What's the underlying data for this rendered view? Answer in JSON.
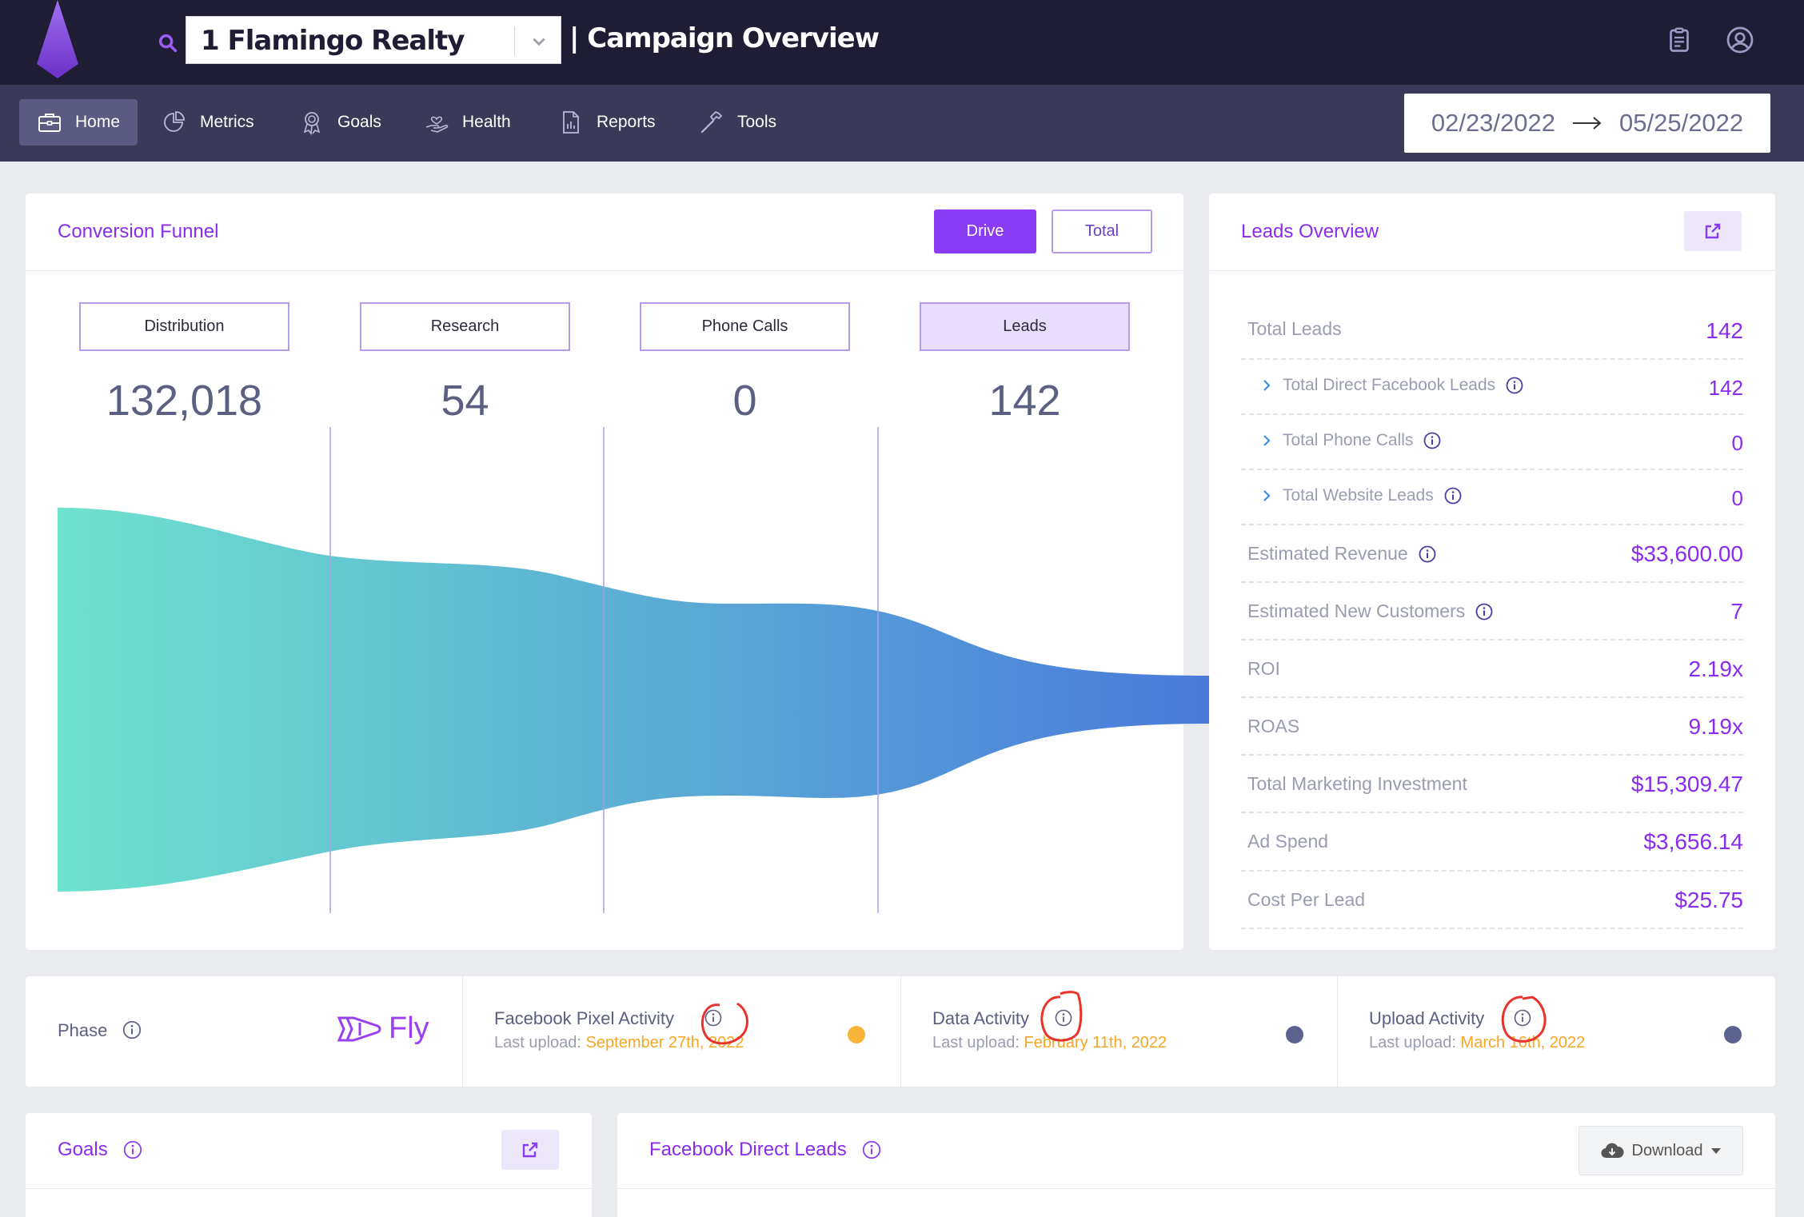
{
  "topbar": {
    "client": "1 Flamingo Realty",
    "page_title": "| Campaign Overview"
  },
  "nav": {
    "items": [
      {
        "label": "Home",
        "icon": "briefcase-icon"
      },
      {
        "label": "Metrics",
        "icon": "pie-chart-icon"
      },
      {
        "label": "Goals",
        "icon": "award-icon"
      },
      {
        "label": "Health",
        "icon": "hand-heart-icon"
      },
      {
        "label": "Reports",
        "icon": "report-icon"
      },
      {
        "label": "Tools",
        "icon": "hammer-icon"
      }
    ],
    "active": "Home"
  },
  "date_range": {
    "start": "02/23/2022",
    "end": "05/25/2022"
  },
  "funnel_card": {
    "title": "Conversion Funnel",
    "btn_drive": "Drive",
    "btn_total": "Total",
    "stages": [
      {
        "label": "Distribution",
        "value": "132,018"
      },
      {
        "label": "Research",
        "value": "54"
      },
      {
        "label": "Phone Calls",
        "value": "0"
      },
      {
        "label": "Leads",
        "value": "142"
      }
    ],
    "selected_stage": "Leads",
    "colors": {
      "start": "#6de3cc",
      "end": "#4a7adc"
    }
  },
  "leads_overview": {
    "title": "Leads Overview",
    "rows": [
      {
        "label": "Total Leads",
        "value": "142"
      },
      {
        "label": "Total Direct Facebook Leads",
        "value": "142"
      },
      {
        "label": "Total Phone Calls",
        "value": "0"
      },
      {
        "label": "Total Website Leads",
        "value": "0"
      },
      {
        "label": "Estimated Revenue",
        "value": "$33,600.00"
      },
      {
        "label": "Estimated New Customers",
        "value": "7"
      },
      {
        "label": "ROI",
        "value": "2.19x"
      },
      {
        "label": "ROAS",
        "value": "9.19x"
      },
      {
        "label": "Total Marketing Investment",
        "value": "$15,309.47"
      },
      {
        "label": "Ad Spend",
        "value": "$3,656.14"
      },
      {
        "label": "Cost Per Lead",
        "value": "$25.75"
      }
    ]
  },
  "status": {
    "phase_label": "Phase",
    "phase_value": "Fly",
    "items": [
      {
        "title": "Facebook Pixel Activity",
        "prefix": "Last upload:",
        "date": "September 27th, 2022",
        "dot": "#f9b43a"
      },
      {
        "title": "Data Activity",
        "prefix": "Last upload:",
        "date": "February 11th, 2022",
        "dot": "#5b6290"
      },
      {
        "title": "Upload Activity",
        "prefix": "Last upload:",
        "date": "March 16th, 2022",
        "dot": "#5b6290"
      }
    ]
  },
  "goals_card": {
    "title": "Goals"
  },
  "fb_leads_card": {
    "title": "Facebook Direct Leads",
    "download": "Download"
  }
}
